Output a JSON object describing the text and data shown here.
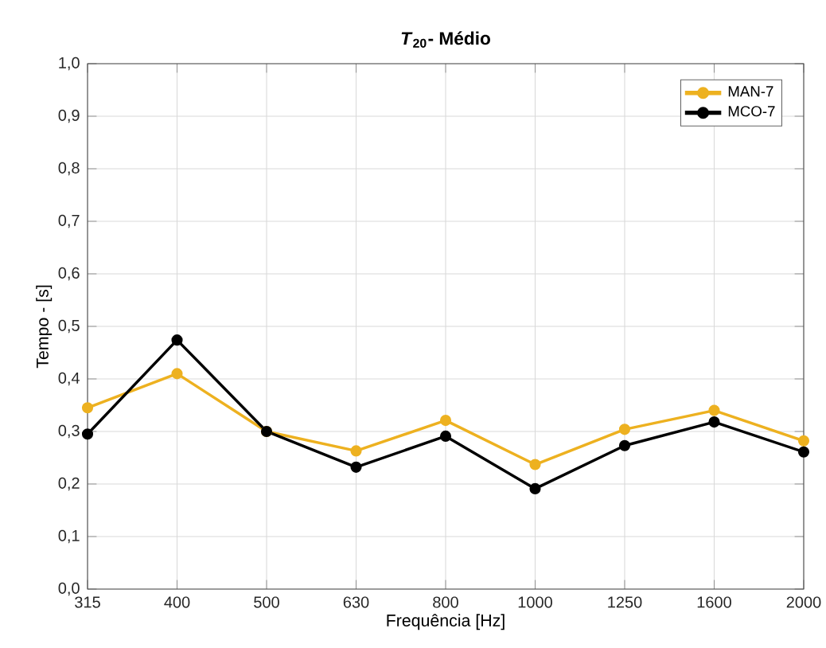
{
  "chart_data": {
    "type": "line",
    "title": "*T*$_{20}$- Médio",
    "xlabel": "Frequência [Hz]",
    "ylabel": "Tempo - [s]",
    "categories": [
      "315",
      "400",
      "500",
      "630",
      "800",
      "1000",
      "1250",
      "1600",
      "2000"
    ],
    "series": [
      {
        "name": "MAN-7",
        "color": "#edb120",
        "values": [
          0.345,
          0.41,
          0.3,
          0.263,
          0.321,
          0.237,
          0.304,
          0.34,
          0.282
        ]
      },
      {
        "name": "MCO-7",
        "color": "#000000",
        "values": [
          0.295,
          0.474,
          0.3,
          0.232,
          0.291,
          0.191,
          0.273,
          0.318,
          0.261
        ]
      }
    ],
    "ylim": [
      0,
      1
    ],
    "yticks": [
      {
        "value": 0,
        "label": "0,0"
      },
      {
        "value": 0.1,
        "label": "0,1"
      },
      {
        "value": 0.2,
        "label": "0,2"
      },
      {
        "value": 0.3,
        "label": "0,3"
      },
      {
        "value": 0.4,
        "label": "0,4"
      },
      {
        "value": 0.5,
        "label": "0,5"
      },
      {
        "value": 0.6,
        "label": "0,6"
      },
      {
        "value": 0.7,
        "label": "0,7"
      },
      {
        "value": 0.8,
        "label": "0,8"
      },
      {
        "value": 0.9,
        "label": "0,9"
      },
      {
        "value": 1,
        "label": "1,0"
      }
    ],
    "grid": true,
    "legend": "top right",
    "marker": "circle",
    "line_style": "solid"
  }
}
